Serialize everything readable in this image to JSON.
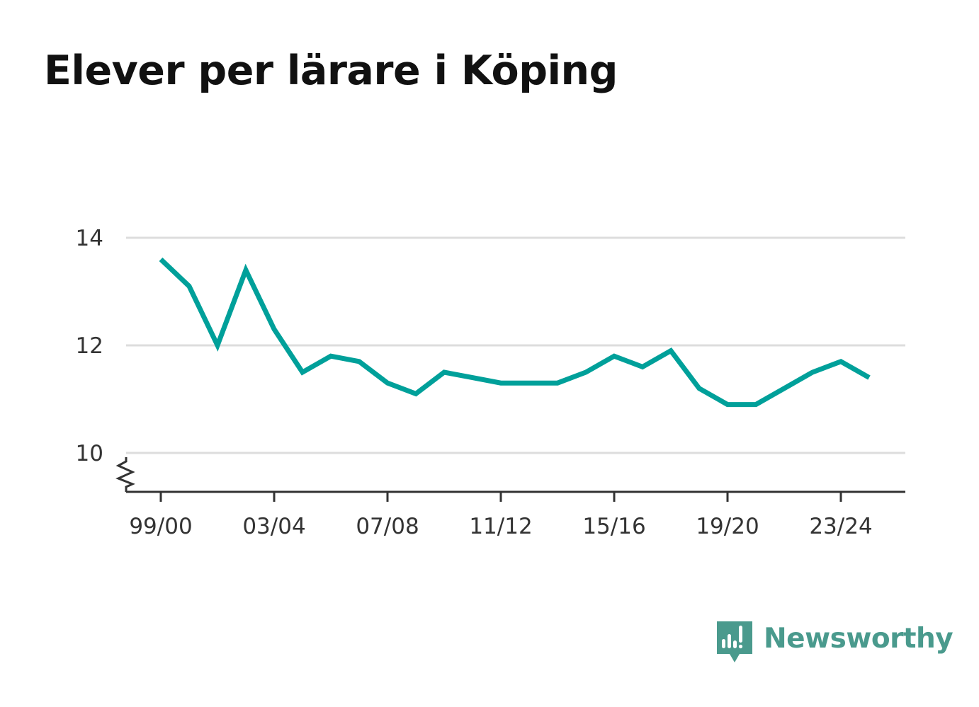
{
  "title": "Elever per lärare i Köping",
  "brand": {
    "name": "Newsworthy",
    "icon": "newsworthy-logo-icon",
    "color": "#4a9a8d"
  },
  "chart_data": {
    "type": "line",
    "title": "Elever per lärare i Köping",
    "xlabel": "",
    "ylabel": "",
    "categories": [
      "99/00",
      "00/01",
      "01/02",
      "02/03",
      "03/04",
      "04/05",
      "05/06",
      "06/07",
      "07/08",
      "08/09",
      "09/10",
      "10/11",
      "11/12",
      "12/13",
      "13/14",
      "14/15",
      "15/16",
      "16/17",
      "17/18",
      "18/19",
      "19/20",
      "20/21",
      "21/22",
      "22/23",
      "23/24",
      "24/25"
    ],
    "x_tick_labels": [
      "99/00",
      "03/04",
      "07/08",
      "11/12",
      "15/16",
      "19/20",
      "23/24"
    ],
    "series": [
      {
        "values": [
          13.6,
          13.1,
          12.0,
          13.4,
          12.3,
          11.5,
          11.8,
          11.7,
          11.3,
          11.1,
          11.5,
          11.4,
          11.3,
          11.3,
          11.3,
          11.5,
          11.8,
          11.6,
          11.9,
          11.2,
          10.9,
          10.9,
          11.2,
          11.5,
          11.7,
          11.4
        ],
        "color": "#00a09a"
      }
    ],
    "y_ticks": [
      10,
      12,
      14
    ],
    "y_tick_labels": [
      "10",
      "12",
      "14"
    ],
    "ylim": [
      10,
      14
    ],
    "y_axis_break": true,
    "grid": true,
    "legend": "none",
    "colors": {
      "line": "#00a09a",
      "grid": "#dddddd",
      "axis": "#333333",
      "text": "#333333"
    }
  }
}
